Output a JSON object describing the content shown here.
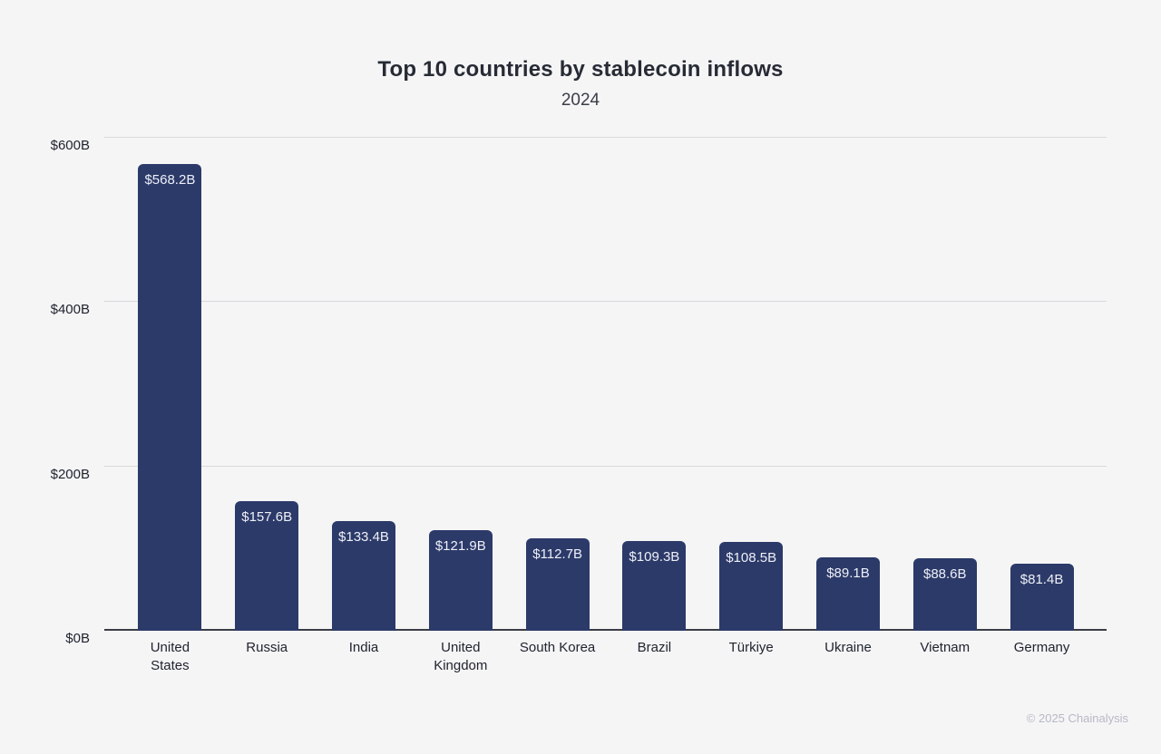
{
  "page": {
    "background": "#f5f5f6"
  },
  "header": {
    "title": "Top 10 countries by stablecoin inflows",
    "subtitle": "2024"
  },
  "footer": {
    "copyright": "© 2025 Chainalysis"
  },
  "chart_data": {
    "type": "bar",
    "title": "Top 10 countries by stablecoin inflows",
    "subtitle": "2024",
    "categories": [
      "United States",
      "Russia",
      "India",
      "United Kingdom",
      "South Korea",
      "Brazil",
      "Türkiye",
      "Ukraine",
      "Vietnam",
      "Germany"
    ],
    "tick_labels": [
      "United\nStates",
      "Russia",
      "India",
      "United\nKingdom",
      "South Korea",
      "Brazil",
      "Türkiye",
      "Ukraine",
      "Vietnam",
      "Germany"
    ],
    "values": [
      568.2,
      157.6,
      133.4,
      121.9,
      112.7,
      109.3,
      108.5,
      89.1,
      88.6,
      81.4
    ],
    "value_labels": [
      "$568.2B",
      "$157.6B",
      "$133.4B",
      "$121.9B",
      "$112.7B",
      "$109.3B",
      "$108.5B",
      "$89.1B",
      "$88.6B",
      "$81.4B"
    ],
    "ylim": [
      0,
      600
    ],
    "yticks": [
      0,
      200,
      400,
      600
    ],
    "ytick_labels": [
      "$0B",
      "$200B",
      "$400B",
      "$600B"
    ],
    "grid": true,
    "legend": false,
    "bar_color": "#2c3a69",
    "bar_label_color": "#eef0f7",
    "gridline_color": "#d9d9db",
    "axis_color": "#3a3d45"
  }
}
